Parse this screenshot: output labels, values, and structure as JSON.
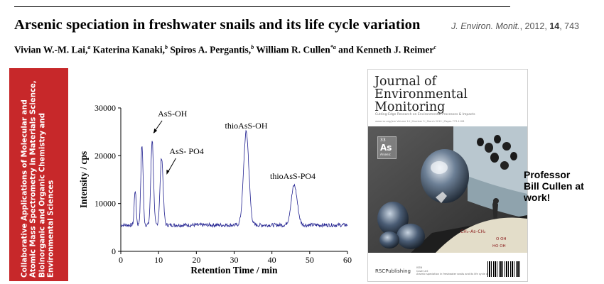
{
  "header": {
    "title": "Arsenic speciation in freshwater snails and its life cycle variation",
    "citation": {
      "journal": "J. Environ. Monit.",
      "year": "2012",
      "volume": "14",
      "page": "743"
    }
  },
  "authors": [
    {
      "name": "Vivian W.-M. Lai,",
      "aff": "a"
    },
    {
      "name": "Katerina Kanaki,",
      "aff": "b"
    },
    {
      "name": "Spiros A. Pergantis,",
      "aff": "b"
    },
    {
      "name": "William R. Cullen",
      "aff": "*a"
    },
    {
      "name": "and Kenneth J. Reimer",
      "aff": "c"
    }
  ],
  "sidebar": {
    "text": "Collaborative Applications of Molecular and Atomic Mass Spectrometry in Materials Science, Bioinorganic and Organic Chemistry and Environmental Sciences",
    "color": "#c7282a"
  },
  "chart_data": {
    "type": "line",
    "xlabel": "Retention Time / min",
    "ylabel": "Intensity / cps",
    "xlim": [
      0,
      60
    ],
    "ylim": [
      0,
      30000
    ],
    "xticks": [
      0,
      10,
      20,
      30,
      40,
      50,
      60
    ],
    "yticks": [
      0,
      10000,
      20000,
      30000
    ],
    "baseline": 5500,
    "noise": 400,
    "peaks": [
      {
        "x": 3.8,
        "height": 12800,
        "width": 0.25
      },
      {
        "x": 5.6,
        "height": 22300,
        "width": 0.3
      },
      {
        "x": 8.3,
        "height": 23300,
        "width": 0.35
      },
      {
        "x": 10.8,
        "height": 19600,
        "width": 0.4
      },
      {
        "x": 33.2,
        "height": 25000,
        "width": 0.7
      },
      {
        "x": 45.9,
        "height": 13800,
        "width": 0.8
      }
    ],
    "annotations": [
      {
        "text": "AsS-OH",
        "x": 8.3
      },
      {
        "text": "AsS- PO4",
        "x": 10.8
      },
      {
        "text": "thioAsS-OH",
        "x": 33.2
      },
      {
        "text": "thioAsS-PO4",
        "x": 45.9
      }
    ],
    "line_color": "#1f1f8f"
  },
  "cover": {
    "title_line1": "Journal of",
    "title_line2": "Environmental",
    "title_line3": "Monitoring",
    "subtitle": "Cutting-Edge Research on Environmental Processes & Impacts",
    "meta": "www.rsc.org/jem    Volume 14 | Number 3 | March 2012 | Pages 773-1108",
    "element_number": "33",
    "element_symbol": "As",
    "element_name": "Arsenic",
    "publisher": "RSCPublishing",
    "foot_line1": "ISSN",
    "foot_line2": "Cover art",
    "foot_line3": "Arsenic speciation in freshwater snails and its life cycle variation"
  },
  "callout": {
    "line1": "Professor",
    "line2": "Bill Cullen at",
    "line3": "work!"
  }
}
